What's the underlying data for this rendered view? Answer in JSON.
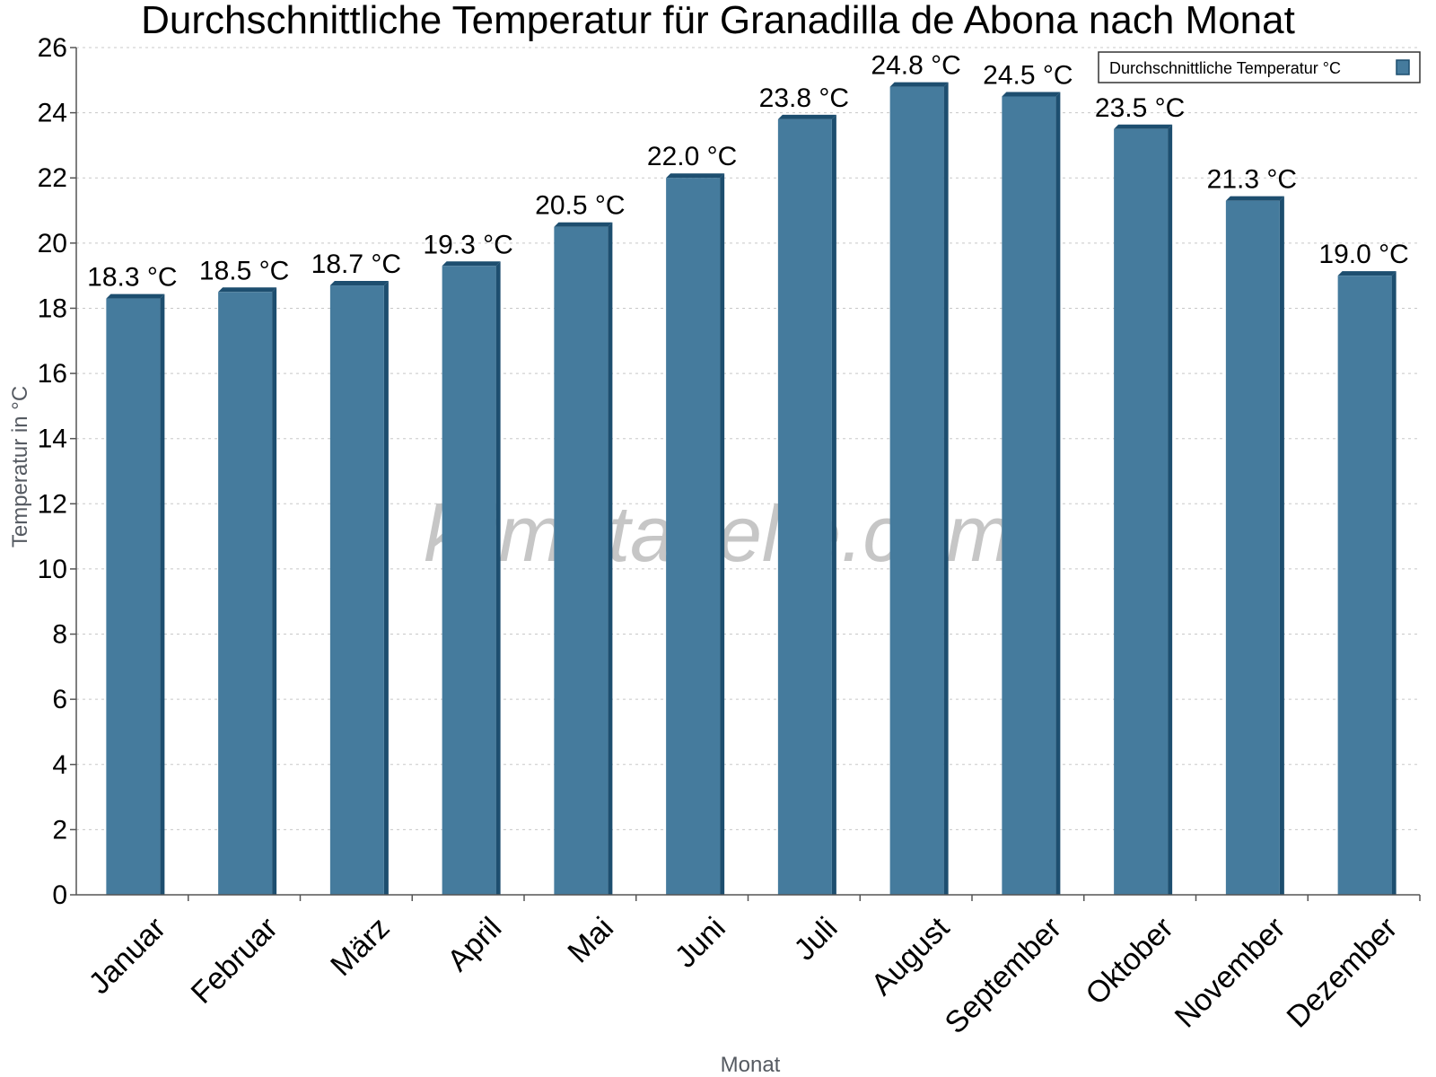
{
  "chart_data": {
    "type": "bar",
    "title": "Durchschnittliche Temperatur für Granadilla de Abona nach Monat",
    "xlabel": "Monat",
    "ylabel": "Temperatur in °C",
    "categories": [
      "Januar",
      "Februar",
      "März",
      "April",
      "Mai",
      "Juni",
      "Juli",
      "August",
      "September",
      "Oktober",
      "November",
      "Dezember"
    ],
    "series": [
      {
        "name": "Durchschnittliche Temperatur °C",
        "values": [
          18.3,
          18.5,
          18.7,
          19.3,
          20.5,
          22.0,
          23.8,
          24.8,
          24.5,
          23.5,
          21.3,
          19.0
        ],
        "labels": [
          "18.3 °C",
          "18.5 °C",
          "18.7 °C",
          "19.3 °C",
          "20.5 °C",
          "22.0 °C",
          "23.8 °C",
          "24.8 °C",
          "24.5 °C",
          "23.5 °C",
          "21.3 °C",
          "19.0 °C"
        ]
      }
    ],
    "ylim": [
      0,
      26
    ],
    "yticks": [
      "0",
      "2",
      "4",
      "6",
      "8",
      "10",
      "12",
      "14",
      "16",
      "18",
      "20",
      "22",
      "24",
      "26"
    ],
    "grid": true,
    "legend_position": "top-right",
    "colors": {
      "bar": "#457b9d",
      "bar_edge": "#1d4e6f",
      "grid": "#c8c8c8",
      "axis": "#555555"
    },
    "watermark": "klimatabelle.com"
  }
}
